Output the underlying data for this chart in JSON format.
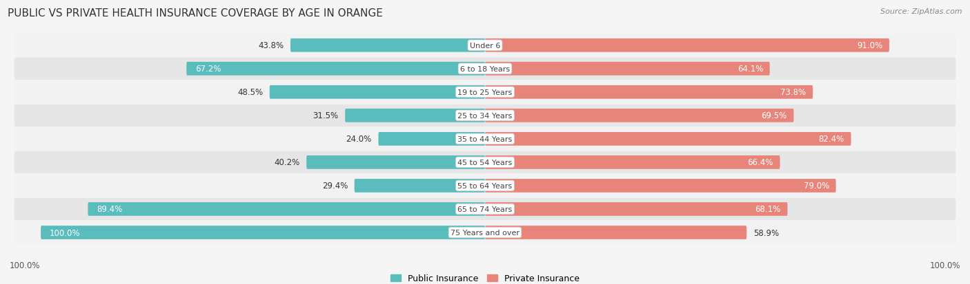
{
  "title": "PUBLIC VS PRIVATE HEALTH INSURANCE COVERAGE BY AGE IN ORANGE",
  "source": "Source: ZipAtlas.com",
  "categories": [
    "Under 6",
    "6 to 18 Years",
    "19 to 25 Years",
    "25 to 34 Years",
    "35 to 44 Years",
    "45 to 54 Years",
    "55 to 64 Years",
    "65 to 74 Years",
    "75 Years and over"
  ],
  "public_values": [
    43.8,
    67.2,
    48.5,
    31.5,
    24.0,
    40.2,
    29.4,
    89.4,
    100.0
  ],
  "private_values": [
    91.0,
    64.1,
    73.8,
    69.5,
    82.4,
    66.4,
    79.0,
    68.1,
    58.9
  ],
  "public_color": "#5bbcbe",
  "private_color": "#e8857a",
  "row_bg_light": "#f2f2f2",
  "row_bg_dark": "#e6e6e6",
  "max_value": 100.0,
  "bar_height": 0.58,
  "label_fontsize": 8.5,
  "title_fontsize": 11,
  "legend_fontsize": 9.0,
  "pub_inside_threshold": 55,
  "priv_inside_threshold": 60
}
